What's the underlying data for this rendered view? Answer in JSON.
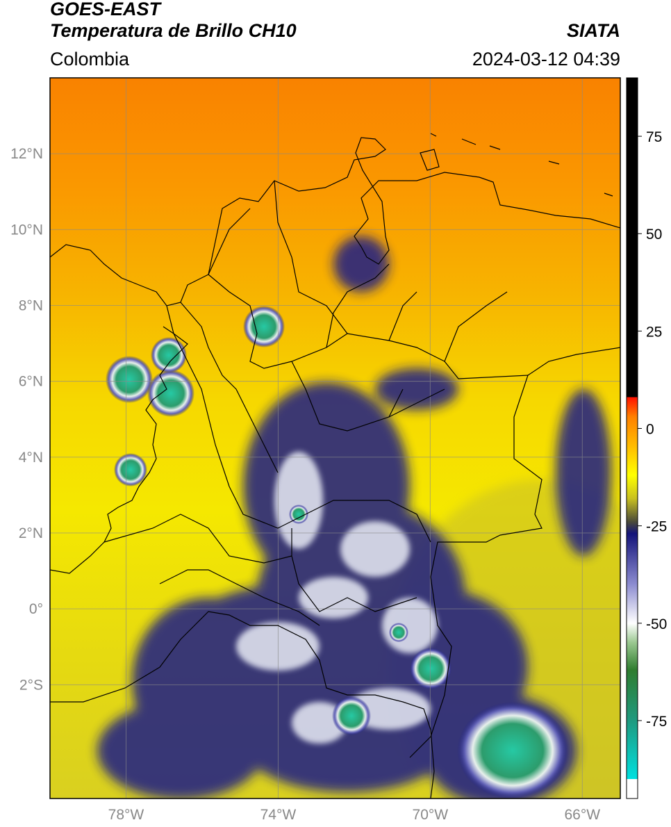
{
  "header": {
    "satellite": "GOES-EAST",
    "product": "Temperatura de Brillo CH10",
    "region": "Colombia",
    "source": "SIATA",
    "timestamp": "2024-03-12 04:39"
  },
  "map": {
    "lon_range": [
      -80,
      -65
    ],
    "lat_range": [
      -5,
      14
    ],
    "lat_ticks": [
      {
        "value": 12,
        "label": "12°N"
      },
      {
        "value": 10,
        "label": "10°N"
      },
      {
        "value": 8,
        "label": "8°N"
      },
      {
        "value": 6,
        "label": "6°N"
      },
      {
        "value": 4,
        "label": "4°N"
      },
      {
        "value": 2,
        "label": "2°N"
      },
      {
        "value": 0,
        "label": "0°"
      },
      {
        "value": -2,
        "label": "2°S"
      }
    ],
    "lon_ticks": [
      {
        "value": -78,
        "label": "78°W"
      },
      {
        "value": -74,
        "label": "74°W"
      },
      {
        "value": -70,
        "label": "70°W"
      },
      {
        "value": -66,
        "label": "66°W"
      }
    ],
    "grid": true,
    "colors": {
      "background_yellow": "#f4e600",
      "warm_orange": "#f79400",
      "cold_navy": "#1c1f86",
      "coldest_teal": "#2aa77e"
    }
  },
  "colorbar": {
    "range": [
      -95,
      90
    ],
    "ticks": [
      {
        "value": 75,
        "label": "75"
      },
      {
        "value": 50,
        "label": "50"
      },
      {
        "value": 25,
        "label": "25"
      },
      {
        "value": 0,
        "label": "0"
      },
      {
        "value": -25,
        "label": "-25"
      },
      {
        "value": -50,
        "label": "-50"
      },
      {
        "value": -75,
        "label": "-75"
      }
    ],
    "stops": [
      {
        "value": -95,
        "color": "#ffffff"
      },
      {
        "value": -90,
        "color": "#ffffff"
      },
      {
        "value": -90,
        "color": "#00e0e0"
      },
      {
        "value": -75,
        "color": "#1f9a7f"
      },
      {
        "value": -62,
        "color": "#2f7d2f"
      },
      {
        "value": -55,
        "color": "#9ac890"
      },
      {
        "value": -50,
        "color": "#ffffff"
      },
      {
        "value": -40,
        "color": "#8c8cd0"
      },
      {
        "value": -27,
        "color": "#14147a"
      },
      {
        "value": -24,
        "color": "#4a4a3a"
      },
      {
        "value": -18,
        "color": "#c8c020"
      },
      {
        "value": -12,
        "color": "#ffff00"
      },
      {
        "value": -5,
        "color": "#ffc000"
      },
      {
        "value": 3,
        "color": "#ff8000"
      },
      {
        "value": 8,
        "color": "#ff1000"
      },
      {
        "value": 8,
        "color": "#000000"
      },
      {
        "value": 90,
        "color": "#000000"
      }
    ]
  }
}
